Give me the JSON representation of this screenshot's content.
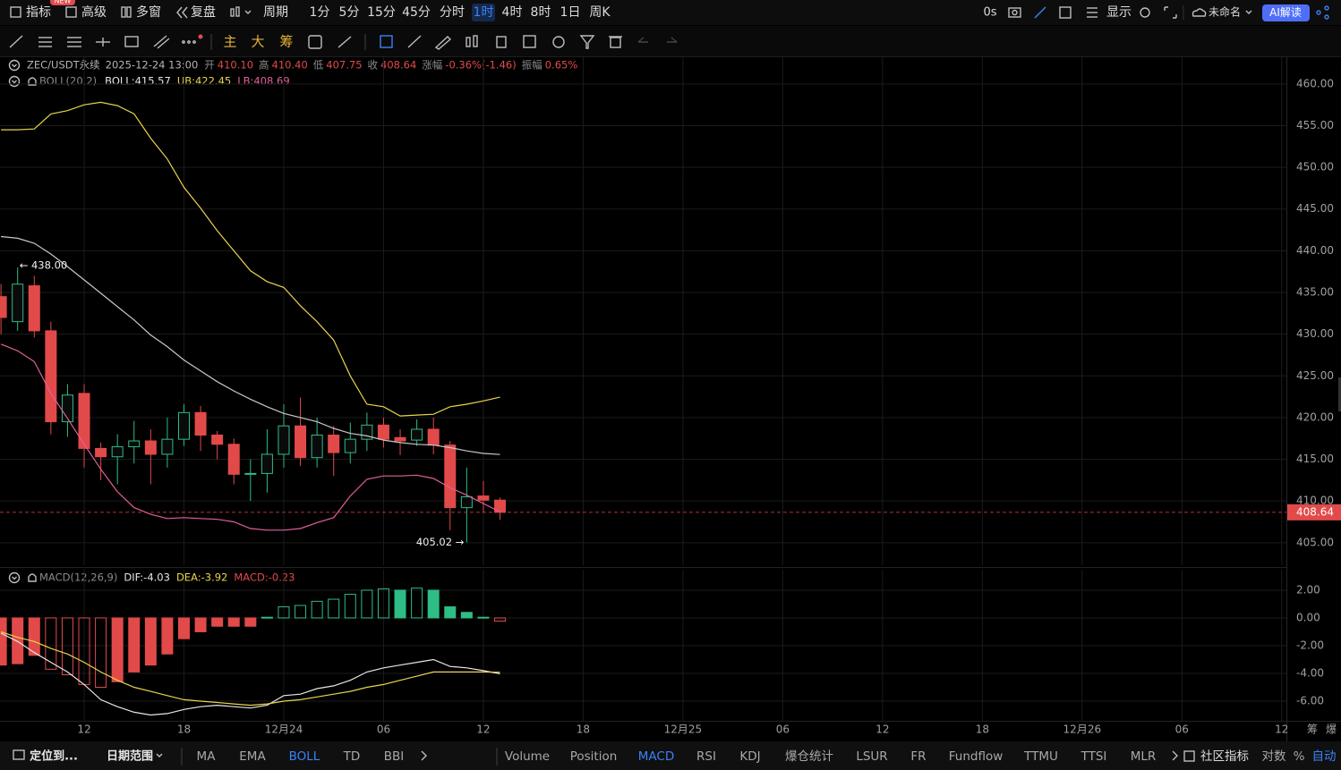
{
  "toolbar": {
    "items": [
      "指标",
      "高级",
      "多窗",
      "复盘",
      "周期"
    ],
    "badge": "NEW",
    "intervals": [
      "1分",
      "5分",
      "15分",
      "45分",
      "分时",
      "1时",
      "4时",
      "8时",
      "1日",
      "周K"
    ],
    "active_interval": 5,
    "countdown": "0s",
    "display": "显示",
    "layout_name": "未命名",
    "ai": "AI解读"
  },
  "drawing_toolbar": {
    "labels": [
      "主",
      "大",
      "筹"
    ]
  },
  "legend": {
    "symbol": "ZEC/USDT永续",
    "time": "2025-12-24 13:00",
    "fields": [
      {
        "label": "开",
        "value": "410.10"
      },
      {
        "label": "高",
        "value": "410.40"
      },
      {
        "label": "低",
        "value": "407.75"
      },
      {
        "label": "收",
        "value": "408.64"
      },
      {
        "label": "涨幅",
        "value": "-0.36%(-1.46)"
      },
      {
        "label": "振幅",
        "value": "0.65%"
      }
    ]
  },
  "boll_legend": {
    "name": "BOLL(20,2)",
    "items": [
      "BOLL:415.57",
      "UB:422.45",
      "LB:408.69"
    ]
  },
  "macd_legend": {
    "name": "MACD(12,26,9)",
    "items": [
      "DIF:-4.03",
      "DEA:-3.92",
      "MACD:-0.23"
    ]
  },
  "chart_data": [
    {
      "type": "candlestick",
      "x": [
        7,
        8,
        9,
        10,
        11,
        12,
        13,
        14,
        15,
        16,
        17,
        18,
        19,
        20,
        21,
        22,
        23,
        24,
        25,
        26,
        27,
        28,
        29,
        30,
        31,
        32,
        33,
        34,
        35,
        36,
        37
      ],
      "open": [
        434.5,
        431.5,
        435.8,
        430.4,
        419.5,
        422.9,
        416.3,
        415.3,
        416.5,
        417.2,
        415.6,
        417.4,
        420.6,
        417.9,
        416.8,
        413.2,
        413.3,
        415.6,
        419.0,
        415.2,
        417.9,
        415.8,
        417.4,
        419.1,
        417.6,
        417.3,
        418.6,
        416.7,
        409.2,
        410.6,
        410.1
      ],
      "high": [
        436.0,
        438.0,
        437.0,
        431.5,
        424.0,
        424.0,
        417.0,
        418.0,
        419.6,
        418.6,
        420.0,
        421.6,
        421.4,
        418.4,
        417.5,
        415.0,
        418.6,
        421.6,
        422.4,
        420.0,
        419.0,
        419.4,
        420.6,
        420.0,
        418.6,
        419.8,
        420.0,
        417.2,
        414.0,
        412.4,
        410.4
      ],
      "low": [
        430.0,
        430.4,
        429.6,
        418.0,
        417.7,
        414.0,
        412.5,
        412.0,
        414.5,
        412.0,
        414.0,
        416.6,
        416.0,
        415.0,
        412.0,
        410.0,
        411.0,
        414.0,
        414.2,
        414.0,
        413.0,
        414.5,
        416.0,
        416.4,
        415.5,
        416.6,
        415.6,
        406.5,
        405.02,
        408.6,
        407.75
      ],
      "close": [
        432.0,
        436.0,
        430.4,
        419.5,
        422.7,
        416.3,
        415.3,
        416.5,
        417.2,
        415.6,
        417.4,
        420.6,
        417.9,
        416.8,
        413.2,
        413.3,
        415.6,
        419.0,
        415.2,
        417.9,
        415.8,
        417.4,
        419.1,
        417.4,
        417.2,
        418.6,
        416.7,
        409.2,
        410.5,
        410.1,
        408.64
      ],
      "up_color": "#2ebd85",
      "down_color": "#e24a4a",
      "series": [
        {
          "color": "#e8d44d",
          "values": [
            454.5,
            454.5,
            454.6,
            456.4,
            456.8,
            457.5,
            457.8,
            457.4,
            456.4,
            453.5,
            451.0,
            447.6,
            445.1,
            442.4,
            440.0,
            437.6,
            436.3,
            435.6,
            433.4,
            431.5,
            429.3,
            425.0,
            421.6,
            421.3,
            420.2,
            420.3,
            420.4,
            421.3,
            421.6,
            422.0,
            422.45
          ]
        },
        {
          "color": "#c8c8c8",
          "values": [
            441.7,
            441.5,
            440.9,
            439.6,
            438.1,
            436.5,
            434.9,
            433.3,
            431.7,
            429.9,
            428.5,
            426.9,
            425.6,
            424.3,
            423.2,
            422.2,
            421.3,
            420.5,
            420.0,
            419.5,
            418.7,
            418.1,
            417.8,
            417.3,
            417.0,
            416.8,
            416.7,
            416.4,
            416.0,
            415.7,
            415.57
          ]
        },
        {
          "color": "#e0609a",
          "values": [
            428.8,
            428.0,
            426.7,
            422.9,
            419.9,
            416.8,
            413.8,
            411.1,
            409.2,
            408.4,
            407.9,
            408.0,
            407.9,
            407.8,
            407.5,
            406.7,
            406.5,
            406.5,
            406.7,
            407.4,
            408.0,
            410.6,
            412.6,
            413.0,
            413.0,
            413.1,
            412.7,
            411.6,
            410.7,
            409.7,
            408.69
          ]
        }
      ],
      "xlim": [
        6.94,
        84.28
      ],
      "xticks": [
        12,
        18,
        {
          "value": 24,
          "label": "12月24"
        },
        {
          "value": 30,
          "label": "06"
        },
        {
          "value": 36,
          "label": "12"
        },
        {
          "value": 42,
          "label": "18"
        },
        {
          "value": 48,
          "label": "12月25"
        },
        {
          "value": 54,
          "label": "06"
        },
        {
          "value": 60,
          "label": "12"
        },
        {
          "value": 66,
          "label": "18"
        },
        {
          "value": 72,
          "label": "12月26"
        },
        {
          "value": 78,
          "label": "06"
        },
        {
          "value": 84,
          "label": "12"
        }
      ],
      "ylim": [
        402.3,
        463.2
      ],
      "yticks": [
        {
          "value": 405,
          "label": "405.00"
        },
        {
          "value": 410,
          "label": "410.00"
        },
        {
          "value": 415,
          "label": "415.00"
        },
        {
          "value": 420,
          "label": "420.00"
        },
        {
          "value": 425,
          "label": "425.00"
        },
        {
          "value": 430,
          "label": "430.00"
        },
        {
          "value": 435,
          "label": "435.00"
        },
        {
          "value": 440,
          "label": "440.00"
        },
        {
          "value": 445,
          "label": "445.00"
        },
        {
          "value": 450,
          "label": "450.00"
        },
        {
          "value": 455,
          "label": "455.00"
        },
        {
          "value": 460,
          "label": "460.00"
        }
      ],
      "grid": true,
      "last_price": {
        "value": 408.64,
        "label": "408.64"
      },
      "annotations": [
        {
          "text": "← 438.00",
          "value": 438.0,
          "x": 8
        },
        {
          "text": "405.02 →",
          "value": 405.02,
          "x": 35
        }
      ]
    },
    {
      "type": "macd",
      "histogram": [
        -3.4,
        -3.3,
        -2.7,
        -3.7,
        -4.1,
        -4.8,
        -5.0,
        -4.6,
        -3.9,
        -3.4,
        -2.6,
        -1.5,
        -1.0,
        -0.6,
        -0.6,
        -0.6,
        0.05,
        0.8,
        0.9,
        1.2,
        1.35,
        1.7,
        2.0,
        2.1,
        2.0,
        2.15,
        2.0,
        0.8,
        0.4,
        0.05,
        -0.23
      ],
      "up_color": "#2ebd85",
      "down_color": "#e24a4a",
      "series": [
        {
          "color": "#e6e6e6",
          "values": [
            -1.1,
            -1.7,
            -2.5,
            -3.2,
            -3.9,
            -4.8,
            -5.9,
            -6.4,
            -6.8,
            -7.0,
            -6.9,
            -6.6,
            -6.4,
            -6.3,
            -6.4,
            -6.5,
            -6.3,
            -5.6,
            -5.5,
            -5.1,
            -4.9,
            -4.5,
            -3.9,
            -3.6,
            -3.4,
            -3.2,
            -3.0,
            -3.5,
            -3.6,
            -3.8,
            -4.03
          ]
        },
        {
          "color": "#e8d44d",
          "values": [
            -1.0,
            -1.4,
            -1.7,
            -2.2,
            -2.6,
            -3.2,
            -3.9,
            -4.5,
            -5.0,
            -5.3,
            -5.6,
            -5.9,
            -6.0,
            -6.1,
            -6.2,
            -6.3,
            -6.2,
            -6.0,
            -5.9,
            -5.7,
            -5.5,
            -5.3,
            -5.0,
            -4.8,
            -4.5,
            -4.2,
            -3.9,
            -3.9,
            -3.9,
            -3.9,
            -3.92
          ]
        }
      ],
      "ylim": [
        -7.42,
        3.48
      ],
      "yticks": [
        {
          "value": -6,
          "label": "-6.00"
        },
        {
          "value": -4,
          "label": "-4.00"
        },
        {
          "value": -2,
          "label": "-2.00"
        },
        {
          "value": 0,
          "label": "0.00"
        },
        {
          "value": 2,
          "label": "2.00"
        }
      ],
      "grid": true
    }
  ],
  "axis_corner": [
    "筹",
    "爆"
  ],
  "bottom_bar": {
    "left": [
      "定位到...",
      "日期范围"
    ],
    "main_indicators": [
      "MA",
      "EMA",
      "BOLL",
      "TD",
      "BBI"
    ],
    "main_active": 2,
    "sub_indicators": [
      "Volume",
      "Position",
      "MACD",
      "RSI",
      "KDJ",
      "爆仓统计",
      "LSUR",
      "FR",
      "Fundflow",
      "TTMU",
      "TTSI",
      "MLR"
    ],
    "sub_active": 2,
    "community": "社区指标",
    "right": [
      "对数",
      "%",
      "自动"
    ]
  }
}
